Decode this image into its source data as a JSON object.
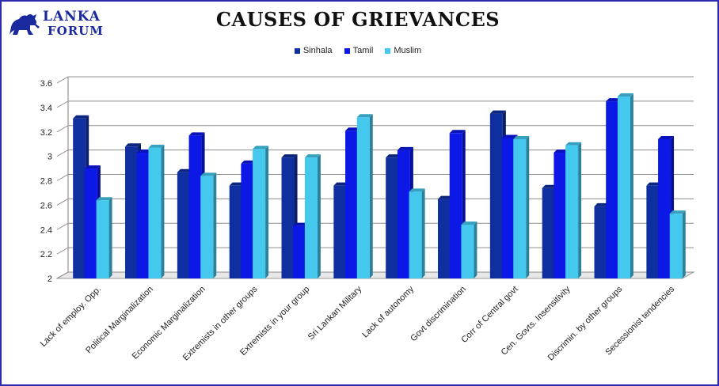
{
  "logo": {
    "line1": "LANKA",
    "line2": "FORUM",
    "icon": "lion-icon"
  },
  "chart_data": {
    "type": "bar",
    "title": "CAUSES OF GRIEVANCES",
    "xlabel": "",
    "ylabel": "",
    "ylim": [
      2,
      3.6
    ],
    "yticks": [
      "2",
      "2.2",
      "2.4",
      "2.6",
      "2.8",
      "3",
      "3.2",
      "3.4",
      "3.6"
    ],
    "grid": true,
    "legend_position": "top-center",
    "categories": [
      "Lack of employ. Opp.",
      "Political Marginalization",
      "Economic Marginalization",
      "Extremists in other groups",
      "Extremists in your group",
      "Sri Lankan Military",
      "Lack of autonomy",
      "Govt discrimination",
      "Corr of Central govt",
      "Cen. Govts. Insensitivity",
      "Discrimin. by other groups",
      "Secessionist tendencies"
    ],
    "series": [
      {
        "name": "Sinhala",
        "color": "#0f2fa0",
        "values": [
          3.31,
          3.08,
          2.87,
          2.76,
          2.99,
          2.76,
          2.99,
          2.65,
          3.35,
          2.74,
          2.59,
          2.76
        ]
      },
      {
        "name": "Tamil",
        "color": "#0b18e6",
        "values": [
          2.9,
          3.03,
          3.17,
          2.94,
          2.43,
          3.21,
          3.05,
          3.19,
          3.15,
          3.03,
          3.45,
          3.14
        ]
      },
      {
        "name": "Muslim",
        "color": "#44c8ee",
        "values": [
          2.64,
          3.07,
          2.84,
          3.06,
          2.99,
          3.32,
          2.71,
          2.44,
          3.14,
          3.09,
          3.49,
          2.53
        ]
      }
    ]
  }
}
